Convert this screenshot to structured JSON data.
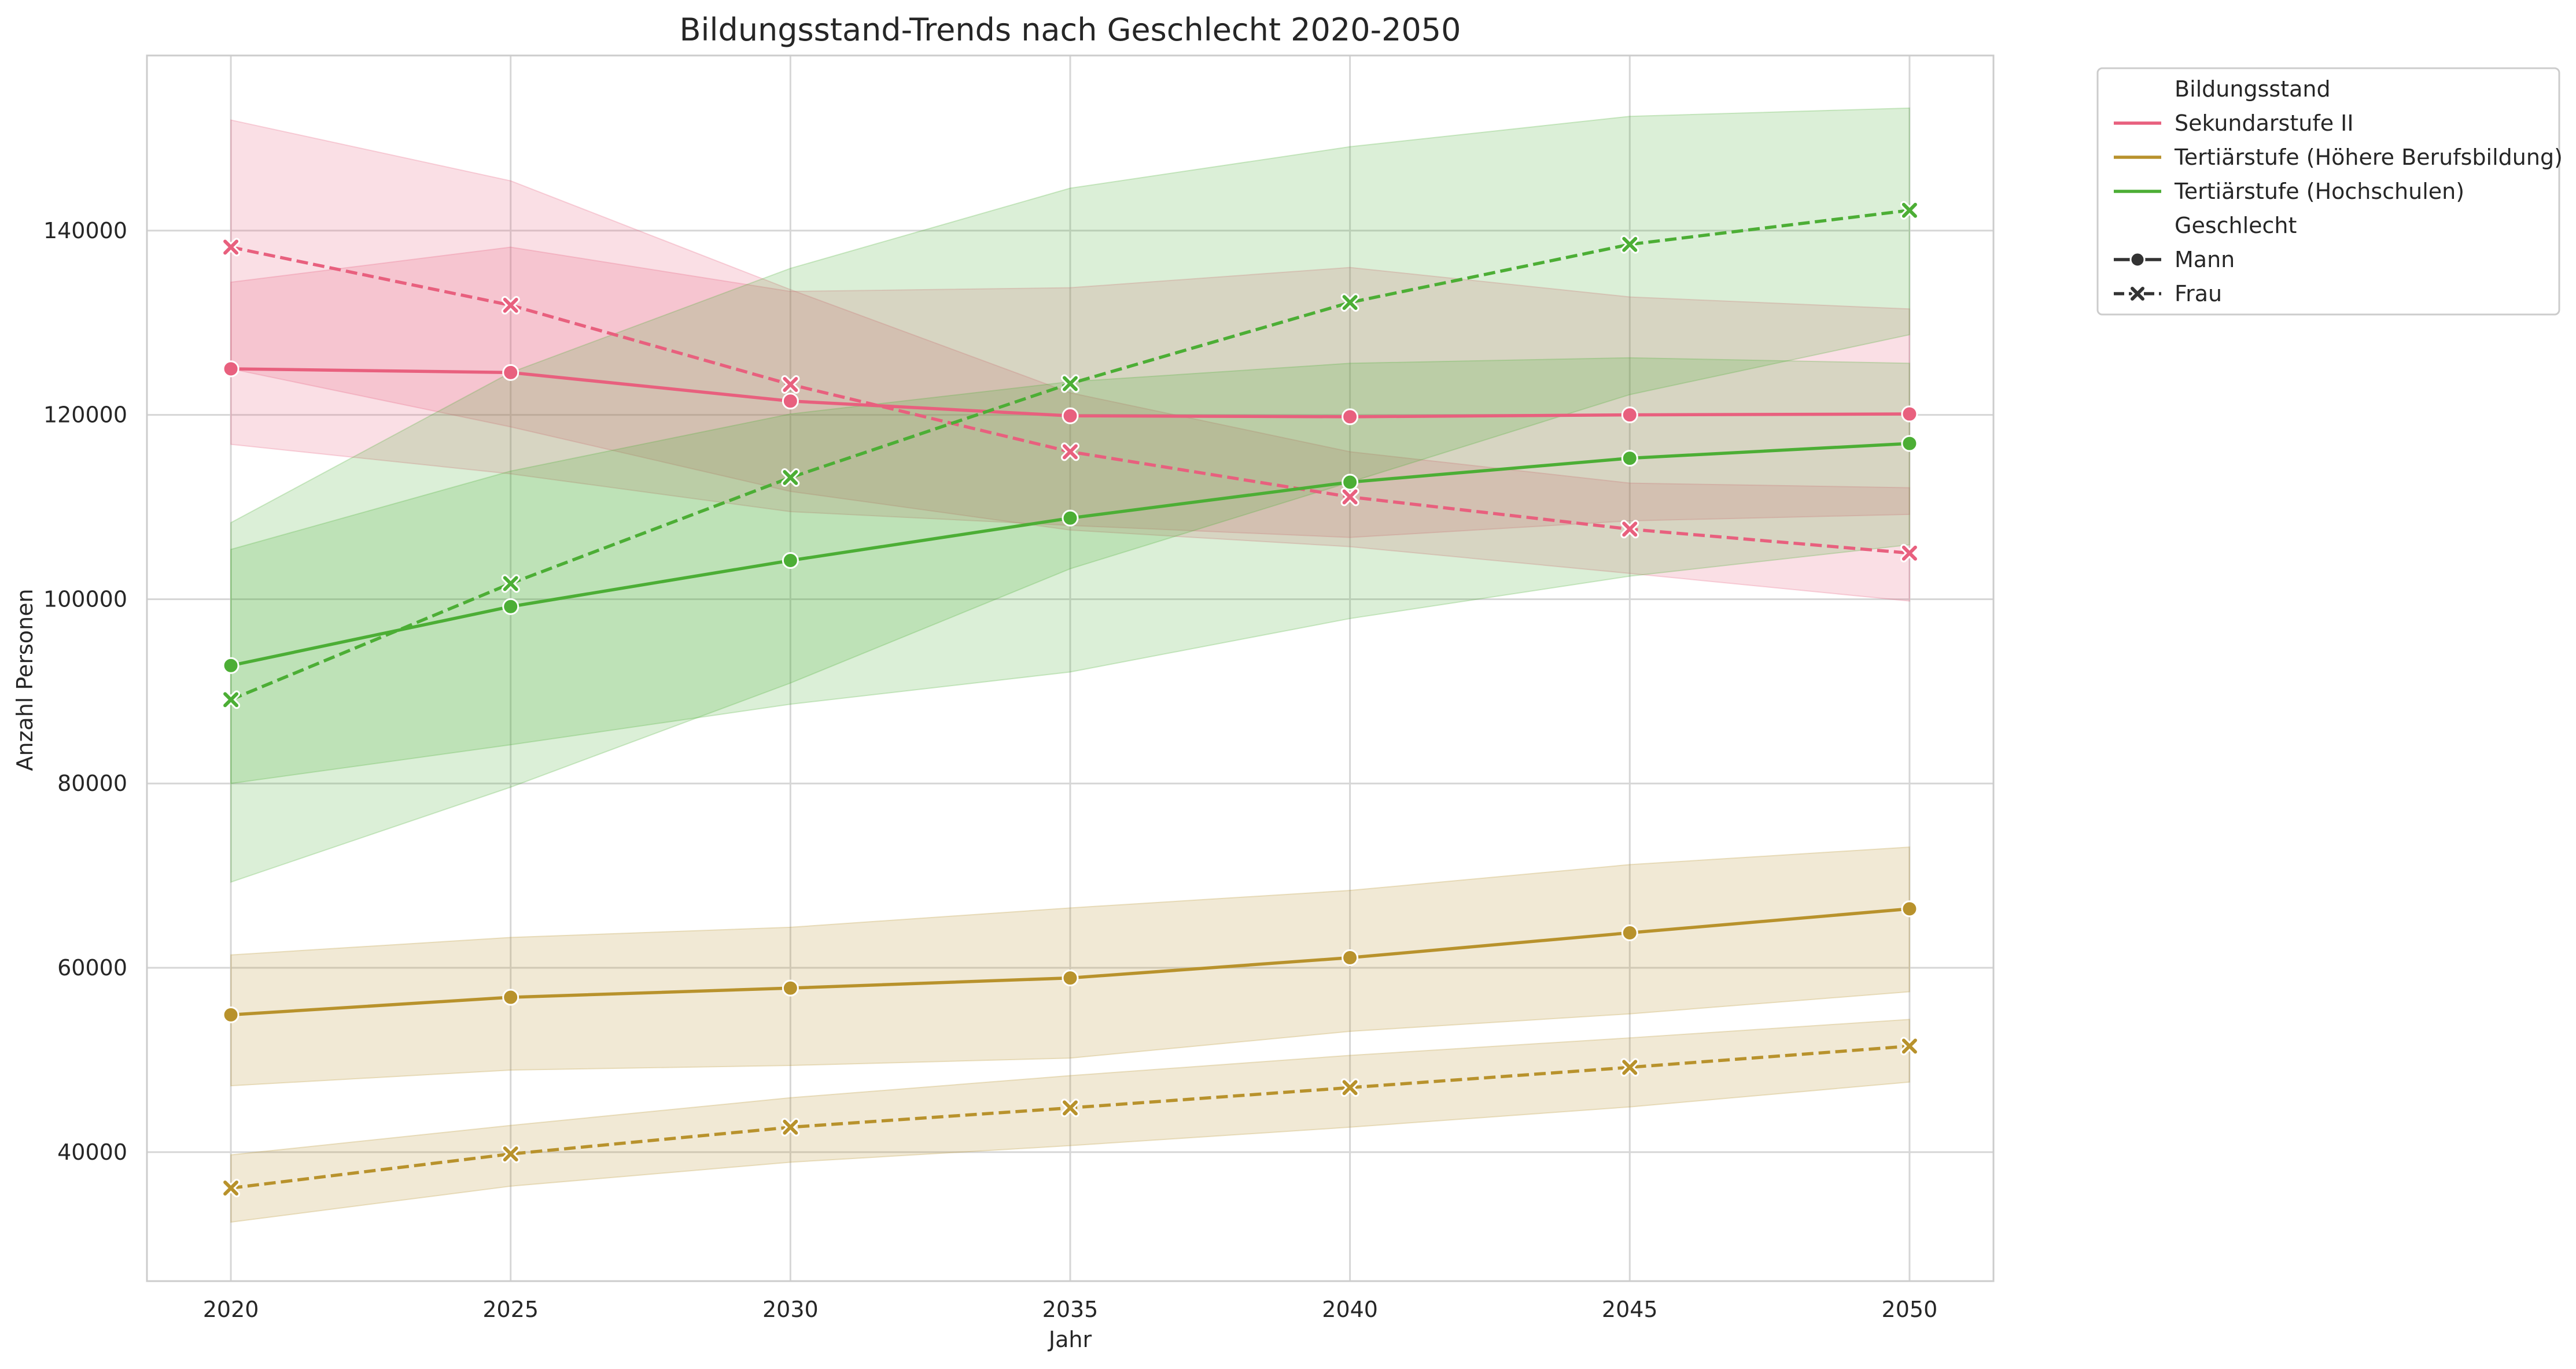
{
  "chart_data": {
    "type": "line",
    "title": "Bildungsstand-Trends nach Geschlecht 2020-2050",
    "xlabel": "Jahr",
    "ylabel": "Anzahl Personen",
    "x": [
      2020,
      2025,
      2030,
      2035,
      2040,
      2045,
      2050
    ],
    "xlim": [
      2018.5,
      2051.5
    ],
    "ylim": [
      26000,
      159000
    ],
    "yticks": [
      40000,
      60000,
      80000,
      100000,
      120000,
      140000
    ],
    "grid": true,
    "legend_position": "outside-top-right",
    "legend": {
      "hue_title": "Bildungsstand",
      "style_title": "Geschlecht",
      "hue_entries": [
        "Sekundarstufe II",
        "Tertiärstufe (Höhere Berufsbildung)",
        "Tertiärstufe (Hochschulen)"
      ],
      "style_entries": [
        "Mann",
        "Frau"
      ]
    },
    "series": [
      {
        "name": "Sekundarstufe II",
        "gender": "Mann",
        "color": "#e8607e",
        "dash": "solid",
        "marker": "circle",
        "values": [
          125000,
          124600,
          121500,
          119900,
          119800,
          120000,
          120100
        ],
        "ci_low": [
          116800,
          113600,
          109500,
          108000,
          106700,
          108500,
          109200
        ],
        "ci_high": [
          134400,
          138200,
          133400,
          133800,
          136000,
          132800,
          131500
        ]
      },
      {
        "name": "Sekundarstufe II",
        "gender": "Frau",
        "color": "#e8607e",
        "dash": "dashed",
        "marker": "x",
        "values": [
          138200,
          131900,
          123300,
          116000,
          111100,
          107600,
          105000
        ],
        "ci_low": [
          125000,
          118700,
          111700,
          107500,
          105700,
          102800,
          99800
        ],
        "ci_high": [
          152000,
          145400,
          133600,
          122400,
          116000,
          112600,
          112100
        ]
      },
      {
        "name": "Tertiärstufe (Höhere Berufsbildung)",
        "gender": "Mann",
        "color": "#b8922c",
        "dash": "solid",
        "marker": "circle",
        "values": [
          54900,
          56800,
          57800,
          58900,
          61100,
          63800,
          66400
        ],
        "ci_low": [
          47200,
          48900,
          49400,
          50200,
          53100,
          55000,
          57400
        ],
        "ci_high": [
          61400,
          63300,
          64400,
          66500,
          68400,
          71200,
          73100
        ]
      },
      {
        "name": "Tertiärstufe (Höhere Berufsbildung)",
        "gender": "Frau",
        "color": "#b8922c",
        "dash": "dashed",
        "marker": "x",
        "values": [
          36100,
          39800,
          42700,
          44800,
          47000,
          49200,
          51500
        ],
        "ci_low": [
          32400,
          36300,
          38900,
          40700,
          42700,
          44900,
          47600
        ],
        "ci_high": [
          39700,
          42900,
          45900,
          48300,
          50500,
          52400,
          54400
        ]
      },
      {
        "name": "Tertiärstufe (Hochschulen)",
        "gender": "Mann",
        "color": "#4cae35",
        "dash": "solid",
        "marker": "circle",
        "values": [
          92800,
          99200,
          104200,
          108800,
          112700,
          115300,
          116900
        ],
        "ci_low": [
          80000,
          84200,
          88600,
          92100,
          97900,
          102500,
          105900
        ],
        "ci_high": [
          105400,
          113900,
          120100,
          123600,
          125600,
          126200,
          125600
        ]
      },
      {
        "name": "Tertiärstufe (Hochschulen)",
        "gender": "Frau",
        "color": "#4cae35",
        "dash": "dashed",
        "marker": "x",
        "values": [
          89100,
          101700,
          113200,
          123400,
          132200,
          138500,
          142200
        ],
        "ci_low": [
          69300,
          79600,
          90900,
          103300,
          112700,
          122200,
          128700
        ],
        "ci_high": [
          108300,
          124600,
          135900,
          144600,
          149100,
          152400,
          153300
        ]
      }
    ]
  }
}
